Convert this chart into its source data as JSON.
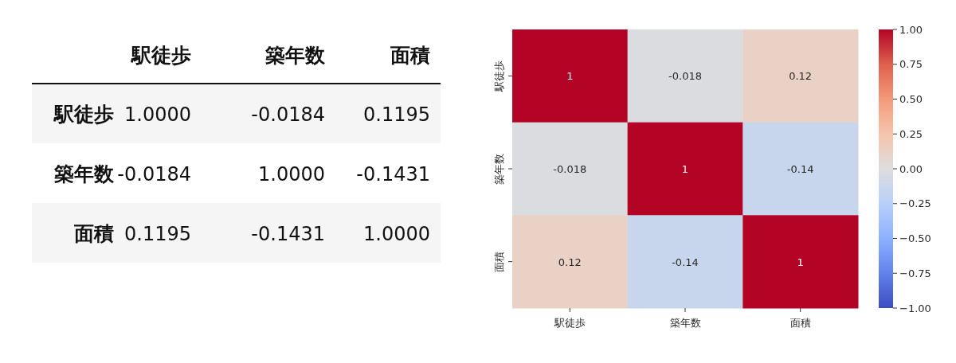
{
  "chart_data": [
    {
      "type": "heatmap",
      "categories": [
        "駅徒歩",
        "築年数",
        "面積"
      ],
      "y_categories": [
        "駅徒歩",
        "築年数",
        "面積"
      ],
      "cells": [
        [
          1,
          -0.0184,
          0.1195
        ],
        [
          -0.0184,
          1,
          -0.1431
        ],
        [
          0.1195,
          -0.1431,
          1
        ]
      ],
      "cell_labels": [
        [
          "1.0000",
          "-0.0184",
          "0.1195"
        ],
        [
          "-0.0184",
          "1.0000",
          "-0.1431"
        ],
        [
          "0.1195",
          "-0.1431",
          "1.0000"
        ]
      ]
    },
    {
      "type": "heatmap",
      "categories": [
        "駅徒歩",
        "築年数",
        "面積"
      ],
      "y_categories": [
        "駅徒歩",
        "築年数",
        "面積"
      ],
      "cells": [
        [
          1,
          -0.018,
          0.12
        ],
        [
          -0.018,
          1,
          -0.14
        ],
        [
          0.12,
          -0.14,
          1
        ]
      ],
      "data_labels": true,
      "clim": [
        -1,
        1
      ],
      "cticks": [
        {
          "value": 1,
          "label": "1.00"
        },
        {
          "value": 0.75,
          "label": "0.75"
        },
        {
          "value": 0.5,
          "label": "0.50"
        },
        {
          "value": 0.25,
          "label": "0.25"
        },
        {
          "value": 0,
          "label": "0.00"
        },
        {
          "value": -0.25,
          "label": "−0.25"
        },
        {
          "value": -0.5,
          "label": "−0.50"
        },
        {
          "value": -0.75,
          "label": "−0.75"
        },
        {
          "value": -1,
          "label": "−1.00"
        }
      ]
    }
  ]
}
